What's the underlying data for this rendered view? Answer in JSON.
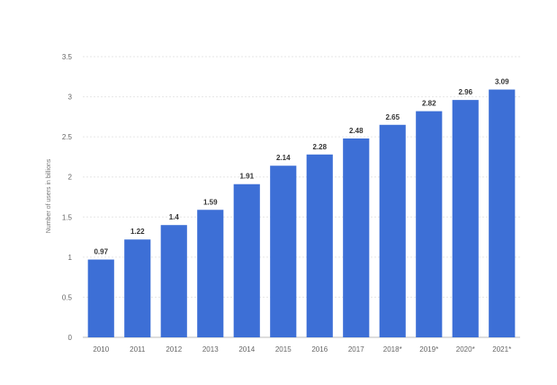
{
  "chart_data": {
    "type": "bar",
    "categories": [
      "2010",
      "2011",
      "2012",
      "2013",
      "2014",
      "2015",
      "2016",
      "2017",
      "2018*",
      "2019*",
      "2020*",
      "2021*"
    ],
    "values": [
      0.97,
      1.22,
      1.4,
      1.59,
      1.91,
      2.14,
      2.28,
      2.48,
      2.65,
      2.82,
      2.96,
      3.09
    ],
    "data_labels": [
      "0.97",
      "1.22",
      "1.4",
      "1.59",
      "1.91",
      "2.14",
      "2.28",
      "2.48",
      "2.65",
      "2.82",
      "2.96",
      "3.09"
    ],
    "yticks": [
      "0",
      "0.5",
      "1",
      "1.5",
      "2",
      "2.5",
      "3",
      "3.5"
    ],
    "ylim": [
      0,
      3.5
    ],
    "ylabel": "Number of users in billions",
    "xlabel": "",
    "title": "",
    "grid": true,
    "bar_color": "#3d6fd6",
    "grid_color": "#e6e6e6"
  }
}
